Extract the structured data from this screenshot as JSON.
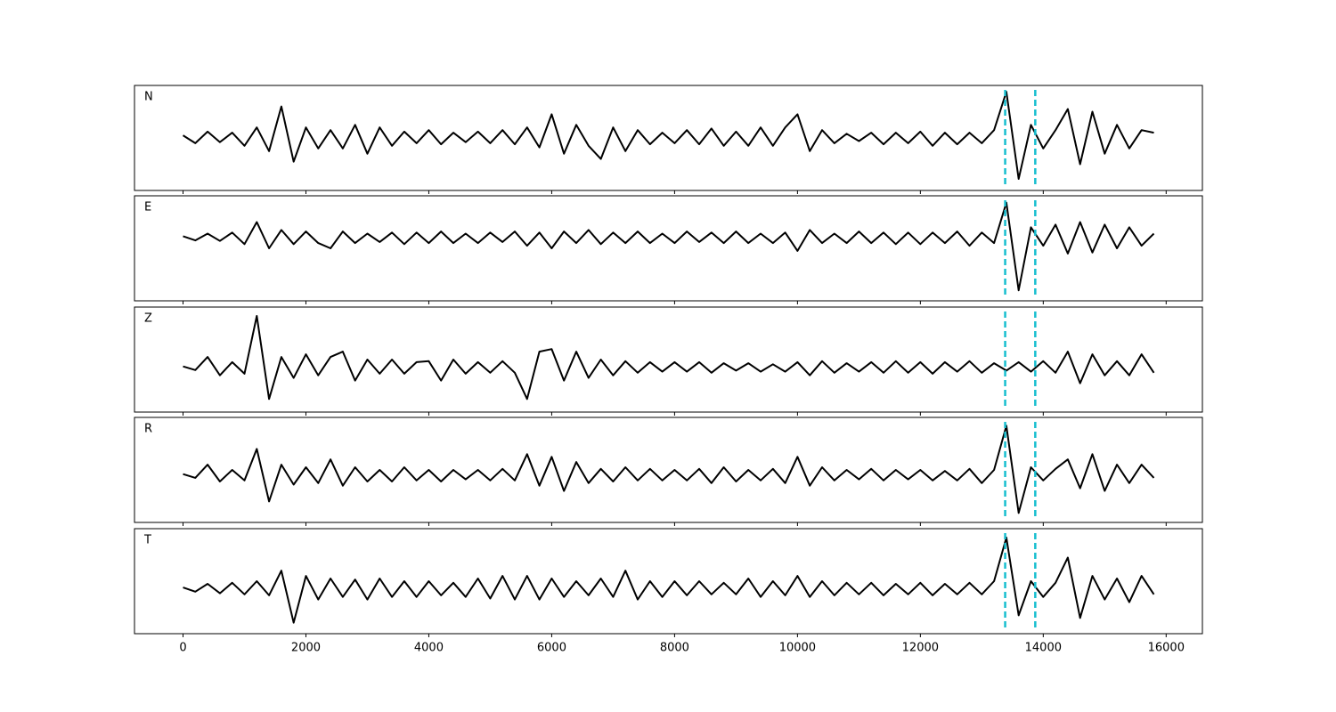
{
  "chart_data": {
    "type": "line",
    "color": "#000000",
    "x": [
      0,
      200,
      400,
      600,
      800,
      1000,
      1200,
      1400,
      1600,
      1800,
      2000,
      2200,
      2400,
      2600,
      2800,
      3000,
      3200,
      3400,
      3600,
      3800,
      4000,
      4200,
      4400,
      4600,
      4800,
      5000,
      5200,
      5400,
      5600,
      5800,
      6000,
      6200,
      6400,
      6600,
      6800,
      7000,
      7200,
      7400,
      7600,
      7800,
      8000,
      8200,
      8400,
      8600,
      8800,
      9000,
      9200,
      9400,
      9600,
      9800,
      10000,
      10200,
      10400,
      10600,
      10800,
      11000,
      11200,
      11400,
      11600,
      11800,
      12000,
      12200,
      12400,
      12600,
      12800,
      13000,
      13200,
      13400,
      13600,
      13800,
      14000,
      14200,
      14400,
      14600,
      14800,
      15000,
      15200,
      15400,
      15600,
      15800
    ],
    "xlim": [
      -790,
      16590
    ],
    "xticks": [
      0,
      2000,
      4000,
      6000,
      8000,
      10000,
      12000,
      14000,
      16000
    ],
    "panels": [
      {
        "label": "N",
        "ylim": [
          -1,
          1
        ],
        "values": [
          0.05,
          -0.1,
          0.12,
          -0.08,
          0.1,
          -0.15,
          0.2,
          -0.25,
          0.6,
          -0.45,
          0.2,
          -0.2,
          0.15,
          -0.2,
          0.25,
          -0.3,
          0.2,
          -0.15,
          0.12,
          -0.1,
          0.15,
          -0.12,
          0.1,
          -0.08,
          0.12,
          -0.1,
          0.15,
          -0.12,
          0.2,
          -0.18,
          0.45,
          -0.3,
          0.25,
          -0.15,
          -0.4,
          0.2,
          -0.25,
          0.15,
          -0.12,
          0.1,
          -0.1,
          0.15,
          -0.12,
          0.18,
          -0.15,
          0.12,
          -0.15,
          0.2,
          -0.15,
          0.2,
          0.45,
          -0.25,
          0.15,
          -0.1,
          0.08,
          -0.06,
          0.1,
          -0.12,
          0.1,
          -0.1,
          0.12,
          -0.15,
          0.1,
          -0.12,
          0.1,
          -0.1,
          0.15,
          0.88,
          -0.78,
          0.25,
          -0.2,
          0.15,
          0.55,
          -0.5,
          0.5,
          -0.3,
          0.25,
          -0.2,
          0.15,
          0.1
        ]
      },
      {
        "label": "E",
        "ylim": [
          -1.2,
          0.8
        ],
        "values": [
          0.03,
          -0.05,
          0.08,
          -0.06,
          0.1,
          -0.12,
          0.3,
          -0.2,
          0.15,
          -0.12,
          0.12,
          -0.1,
          -0.2,
          0.12,
          -0.1,
          0.08,
          -0.08,
          0.1,
          -0.12,
          0.1,
          -0.1,
          0.12,
          -0.1,
          0.08,
          -0.1,
          0.1,
          -0.08,
          0.12,
          -0.15,
          0.1,
          -0.2,
          0.12,
          -0.1,
          0.15,
          -0.12,
          0.1,
          -0.1,
          0.12,
          -0.1,
          0.08,
          -0.1,
          0.12,
          -0.08,
          0.1,
          -0.1,
          0.12,
          -0.1,
          0.08,
          -0.1,
          0.1,
          -0.25,
          0.15,
          -0.1,
          0.08,
          -0.1,
          0.12,
          -0.1,
          0.1,
          -0.12,
          0.1,
          -0.12,
          0.1,
          -0.1,
          0.12,
          -0.15,
          0.1,
          -0.1,
          0.67,
          -1.0,
          0.2,
          -0.15,
          0.25,
          -0.3,
          0.3,
          -0.28,
          0.25,
          -0.2,
          0.2,
          -0.15,
          0.08
        ]
      },
      {
        "label": "Z",
        "ylim": [
          -0.85,
          1.15
        ],
        "values": [
          0.02,
          -0.05,
          0.2,
          -0.15,
          0.1,
          -0.12,
          0.98,
          -0.6,
          0.2,
          -0.2,
          0.25,
          -0.15,
          0.2,
          0.3,
          -0.25,
          0.15,
          -0.12,
          0.15,
          -0.12,
          0.1,
          0.12,
          -0.25,
          0.15,
          -0.12,
          0.1,
          -0.1,
          0.12,
          -0.1,
          -0.6,
          0.3,
          0.35,
          -0.25,
          0.3,
          -0.2,
          0.15,
          -0.15,
          0.12,
          -0.1,
          0.1,
          -0.08,
          0.1,
          -0.08,
          0.1,
          -0.1,
          0.08,
          -0.06,
          0.08,
          -0.08,
          0.06,
          -0.08,
          0.1,
          -0.15,
          0.12,
          -0.1,
          0.08,
          -0.08,
          0.1,
          -0.1,
          0.12,
          -0.1,
          0.1,
          -0.12,
          0.1,
          -0.08,
          0.12,
          -0.1,
          0.08,
          -0.06,
          0.1,
          -0.08,
          0.12,
          -0.1,
          0.3,
          -0.3,
          0.25,
          -0.15,
          0.12,
          -0.15,
          0.25,
          -0.1
        ]
      },
      {
        "label": "R",
        "ylim": [
          -0.9,
          1.1
        ],
        "values": [
          0.02,
          -0.05,
          0.2,
          -0.12,
          0.1,
          -0.1,
          0.5,
          -0.5,
          0.2,
          -0.18,
          0.15,
          -0.15,
          0.3,
          -0.2,
          0.15,
          -0.12,
          0.1,
          -0.12,
          0.15,
          -0.1,
          0.1,
          -0.12,
          0.1,
          -0.08,
          0.1,
          -0.1,
          0.12,
          -0.1,
          0.4,
          -0.2,
          0.35,
          -0.3,
          0.25,
          -0.15,
          0.12,
          -0.12,
          0.15,
          -0.1,
          0.12,
          -0.1,
          0.1,
          -0.1,
          0.12,
          -0.15,
          0.15,
          -0.12,
          0.1,
          -0.1,
          0.12,
          -0.15,
          0.35,
          -0.2,
          0.15,
          -0.1,
          0.1,
          -0.08,
          0.12,
          -0.1,
          0.1,
          -0.08,
          0.1,
          -0.1,
          0.08,
          -0.1,
          0.12,
          -0.15,
          0.1,
          0.94,
          -0.72,
          0.15,
          -0.1,
          0.12,
          0.3,
          -0.25,
          0.4,
          -0.3,
          0.2,
          -0.15,
          0.2,
          -0.05
        ]
      },
      {
        "label": "T",
        "ylim": [
          -0.85,
          1.15
        ],
        "values": [
          0.03,
          -0.05,
          0.1,
          -0.08,
          0.12,
          -0.1,
          0.15,
          -0.12,
          0.35,
          -0.64,
          0.25,
          -0.2,
          0.2,
          -0.15,
          0.18,
          -0.2,
          0.2,
          -0.15,
          0.15,
          -0.15,
          0.15,
          -0.12,
          0.12,
          -0.15,
          0.2,
          -0.18,
          0.25,
          -0.2,
          0.25,
          -0.2,
          0.2,
          -0.15,
          0.15,
          -0.12,
          0.2,
          -0.15,
          0.35,
          -0.2,
          0.15,
          -0.15,
          0.15,
          -0.12,
          0.15,
          -0.1,
          0.12,
          -0.1,
          0.2,
          -0.15,
          0.15,
          -0.12,
          0.25,
          -0.15,
          0.15,
          -0.12,
          0.12,
          -0.1,
          0.12,
          -0.12,
          0.1,
          -0.1,
          0.12,
          -0.12,
          0.1,
          -0.1,
          0.12,
          -0.1,
          0.15,
          0.98,
          -0.5,
          0.15,
          -0.15,
          0.12,
          0.6,
          -0.55,
          0.25,
          -0.2,
          0.2,
          -0.25,
          0.25,
          -0.1
        ]
      }
    ],
    "markers": {
      "values": [
        13380,
        13870
      ],
      "color": "#17becf",
      "style": "dashed"
    }
  }
}
